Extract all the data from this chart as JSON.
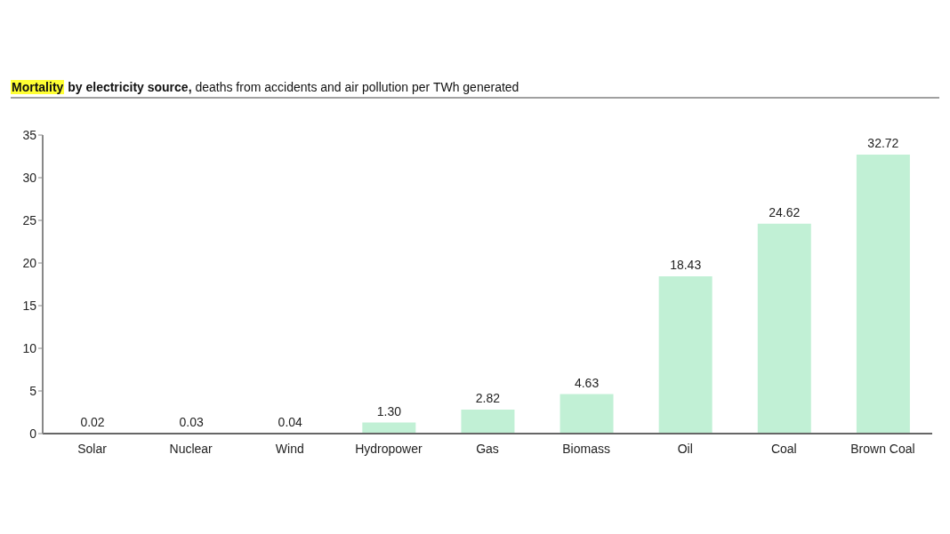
{
  "chart_data": {
    "type": "bar",
    "title": "Mortality by electricity source,",
    "subtitle": "deaths from accidents and air pollution per TWh generated",
    "categories": [
      "Solar",
      "Nuclear",
      "Wind",
      "Hydropower",
      "Gas",
      "Biomass",
      "Oil",
      "Coal",
      "Brown Coal"
    ],
    "values": [
      0.02,
      0.03,
      0.04,
      1.3,
      2.82,
      4.63,
      18.43,
      24.62,
      32.72
    ],
    "value_labels": [
      "0.02",
      "0.03",
      "0.04",
      "1.30",
      "2.82",
      "4.63",
      "18.43",
      "24.62",
      "32.72"
    ],
    "color": "#c1f0d5",
    "ylim": [
      0,
      35
    ],
    "yticks": [
      0,
      5,
      10,
      15,
      20,
      25,
      30,
      35
    ]
  }
}
